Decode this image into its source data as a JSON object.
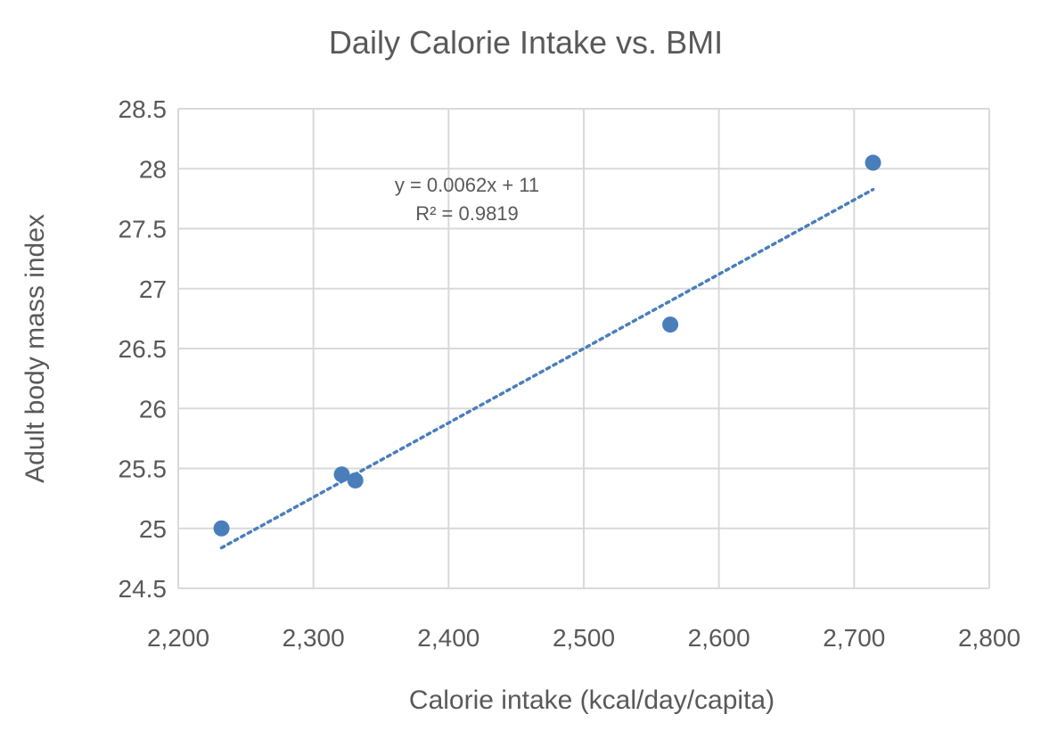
{
  "chart_data": {
    "type": "scatter",
    "title": "Daily Calorie Intake vs. BMI",
    "xlabel": "Calorie intake (kcal/day/capita)",
    "ylabel": "Adult body mass index",
    "xlim": [
      2200,
      2800
    ],
    "ylim": [
      24.5,
      28.5
    ],
    "xticks": [
      2200,
      2300,
      2400,
      2500,
      2600,
      2700,
      2800
    ],
    "xtick_labels": [
      "2,200",
      "2,300",
      "2,400",
      "2,500",
      "2,600",
      "2,700",
      "2,800"
    ],
    "yticks": [
      24.5,
      25,
      25.5,
      26,
      26.5,
      27,
      27.5,
      28,
      28.5
    ],
    "ytick_labels": [
      "24.5",
      "25",
      "25.5",
      "26",
      "26.5",
      "27",
      "27.5",
      "28",
      "28.5"
    ],
    "grid": true,
    "series": [
      {
        "name": "BMI",
        "color": "#4a7ebb",
        "x": [
          2232,
          2321,
          2331,
          2564,
          2714
        ],
        "y": [
          25.0,
          25.45,
          25.4,
          26.7,
          28.05
        ]
      }
    ],
    "trendline": {
      "type": "linear",
      "slope": 0.0062,
      "intercept": 11,
      "x_range": [
        2232,
        2714
      ],
      "color": "#4a7ebb",
      "equation": "y = 0.0062x + 11",
      "r_squared": "R² = 0.9819"
    }
  }
}
